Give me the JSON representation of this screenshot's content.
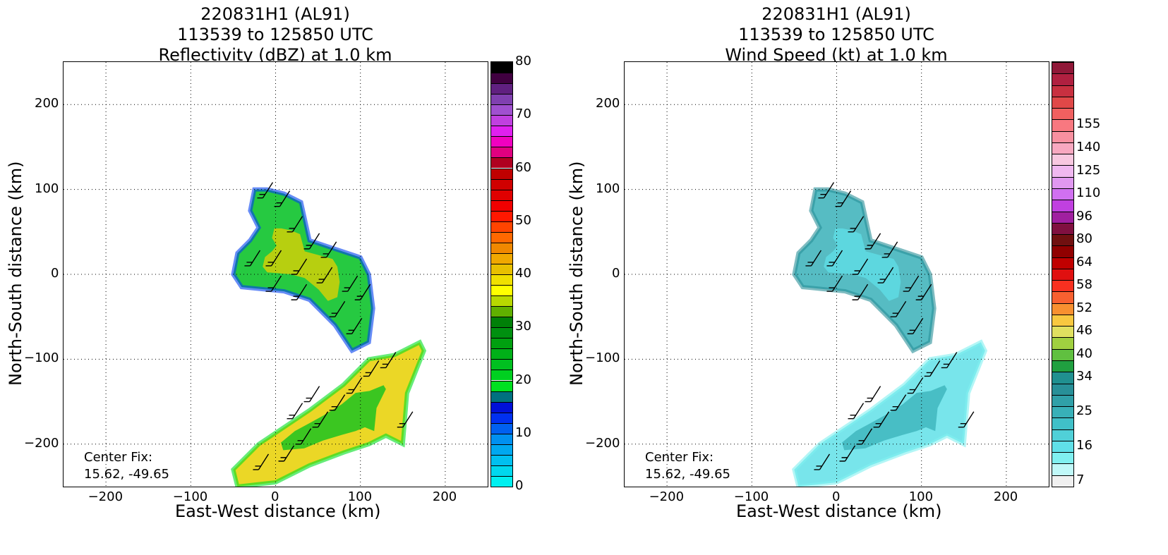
{
  "chart_data": [
    {
      "type": "heatmap",
      "title": [
        "220831H1 (AL91)",
        "113539 to 125850 UTC",
        "Reflectivity (dBZ) at 1.0 km"
      ],
      "xlabel": "East-West distance (km)",
      "ylabel": "North-South distance (km)",
      "xlim": [
        -250,
        250
      ],
      "ylim": [
        -250,
        250
      ],
      "xticks": [
        -200,
        -100,
        0,
        100,
        200
      ],
      "yticks": [
        -200,
        -100,
        0,
        100,
        200
      ],
      "xtick_labels": [
        "−200",
        "−100",
        "0",
        "100",
        "200"
      ],
      "ytick_labels": [
        "−200",
        "−100",
        "0",
        "100",
        "200"
      ],
      "grid": true,
      "annotation": [
        "Center Fix:",
        "15.62, -49.65"
      ],
      "colorbar": {
        "min": 0,
        "max": 80,
        "labels": [
          "0",
          "10",
          "20",
          "30",
          "40",
          "50",
          "60",
          "70",
          "80"
        ],
        "label_values": [
          0,
          10,
          20,
          30,
          40,
          50,
          60,
          70,
          80
        ],
        "colors": [
          "#00f0f0",
          "#00d8ee",
          "#00c0f0",
          "#00a8f0",
          "#0090f0",
          "#0060f0",
          "#0030f0",
          "#0010d8",
          "#007080",
          "#00e020",
          "#00d020",
          "#00c020",
          "#00b018",
          "#00a010",
          "#009010",
          "#008008",
          "#60b000",
          "#b8d800",
          "#ffff00",
          "#f0e000",
          "#e8c000",
          "#f0a800",
          "#f08800",
          "#ff6800",
          "#ff4400",
          "#ff1800",
          "#f00000",
          "#e00000",
          "#d00000",
          "#c00000",
          "#b00020",
          "#e00080",
          "#f000c0",
          "#e020f0",
          "#c040e0",
          "#a050d0",
          "#8040b0",
          "#602080",
          "#400040",
          "#000000"
        ]
      },
      "regions": [
        {
          "name": "north band",
          "points": [
            [
              -25,
              100
            ],
            [
              -10,
              100
            ],
            [
              10,
              95
            ],
            [
              30,
              85
            ],
            [
              40,
              40
            ],
            [
              70,
              30
            ],
            [
              100,
              20
            ],
            [
              110,
              0
            ],
            [
              115,
              -40
            ],
            [
              110,
              -80
            ],
            [
              90,
              -90
            ],
            [
              70,
              -60
            ],
            [
              40,
              -30
            ],
            [
              10,
              -20
            ],
            [
              -40,
              -15
            ],
            [
              -50,
              0
            ],
            [
              -45,
              25
            ],
            [
              -30,
              40
            ],
            [
              -20,
              55
            ],
            [
              -30,
              75
            ]
          ]
        },
        {
          "name": "south band",
          "points": [
            [
              -50,
              -230
            ],
            [
              -20,
              -200
            ],
            [
              10,
              -180
            ],
            [
              40,
              -160
            ],
            [
              80,
              -130
            ],
            [
              110,
              -100
            ],
            [
              140,
              -95
            ],
            [
              170,
              -80
            ],
            [
              175,
              -90
            ],
            [
              155,
              -140
            ],
            [
              150,
              -200
            ],
            [
              130,
              -190
            ],
            [
              110,
              -200
            ],
            [
              80,
              -210
            ],
            [
              40,
              -225
            ],
            [
              0,
              -245
            ],
            [
              -45,
              -250
            ]
          ]
        }
      ]
    },
    {
      "type": "heatmap",
      "title": [
        "220831H1 (AL91)",
        "113539 to 125850 UTC",
        "Wind Speed (kt) at 1.0 km"
      ],
      "xlabel": "East-West distance (km)",
      "ylabel": "North-South distance (km)",
      "xlim": [
        -250,
        250
      ],
      "ylim": [
        -250,
        250
      ],
      "xticks": [
        -200,
        -100,
        0,
        100,
        200
      ],
      "yticks": [
        -200,
        -100,
        0,
        100,
        200
      ],
      "xtick_labels": [
        "−200",
        "−100",
        "0",
        "100",
        "200"
      ],
      "ytick_labels": [
        "−200",
        "−100",
        "0",
        "100",
        "200"
      ],
      "grid": true,
      "annotation": [
        "Center Fix:",
        "15.62, -49.65"
      ],
      "colorbar": {
        "min": 0,
        "max": 160,
        "labels": [
          "7",
          "16",
          "25",
          "34",
          "40",
          "46",
          "52",
          "58",
          "64",
          "80",
          "96",
          "110",
          "125",
          "140",
          "155"
        ],
        "label_index": [
          0,
          3,
          6,
          9,
          11,
          13,
          15,
          17,
          19,
          21,
          23,
          25,
          27,
          29,
          31
        ],
        "colors": [
          "#f0f0f0",
          "#c0f8f8",
          "#80f0f0",
          "#60e0e8",
          "#50d0d8",
          "#40c0c8",
          "#38b0b8",
          "#30a0a8",
          "#289098",
          "#209090",
          "#20a040",
          "#60c040",
          "#a0d040",
          "#e0e060",
          "#f8c840",
          "#f89030",
          "#f86030",
          "#f83020",
          "#e01010",
          "#c00000",
          "#900000",
          "#701010",
          "#801040",
          "#a020a0",
          "#c040e0",
          "#d070f0",
          "#e098f0",
          "#f0b8f0",
          "#f8c8e0",
          "#f8a8c0",
          "#f890a0",
          "#f87880",
          "#f06060",
          "#e04848",
          "#c83040",
          "#b02040",
          "#901838"
        ]
      },
      "regions": [
        {
          "name": "north band",
          "points": [
            [
              -25,
              100
            ],
            [
              -10,
              100
            ],
            [
              10,
              95
            ],
            [
              30,
              85
            ],
            [
              40,
              40
            ],
            [
              70,
              30
            ],
            [
              100,
              20
            ],
            [
              110,
              0
            ],
            [
              115,
              -40
            ],
            [
              110,
              -80
            ],
            [
              90,
              -90
            ],
            [
              70,
              -60
            ],
            [
              40,
              -30
            ],
            [
              10,
              -20
            ],
            [
              -40,
              -15
            ],
            [
              -50,
              0
            ],
            [
              -45,
              25
            ],
            [
              -30,
              40
            ],
            [
              -20,
              55
            ],
            [
              -30,
              75
            ]
          ]
        },
        {
          "name": "south band",
          "points": [
            [
              -50,
              -230
            ],
            [
              -20,
              -200
            ],
            [
              10,
              -180
            ],
            [
              40,
              -160
            ],
            [
              80,
              -130
            ],
            [
              110,
              -100
            ],
            [
              140,
              -95
            ],
            [
              170,
              -80
            ],
            [
              175,
              -90
            ],
            [
              155,
              -140
            ],
            [
              150,
              -200
            ],
            [
              130,
              -190
            ],
            [
              110,
              -200
            ],
            [
              80,
              -210
            ],
            [
              40,
              -225
            ],
            [
              0,
              -245
            ],
            [
              -45,
              -250
            ]
          ]
        }
      ]
    }
  ]
}
